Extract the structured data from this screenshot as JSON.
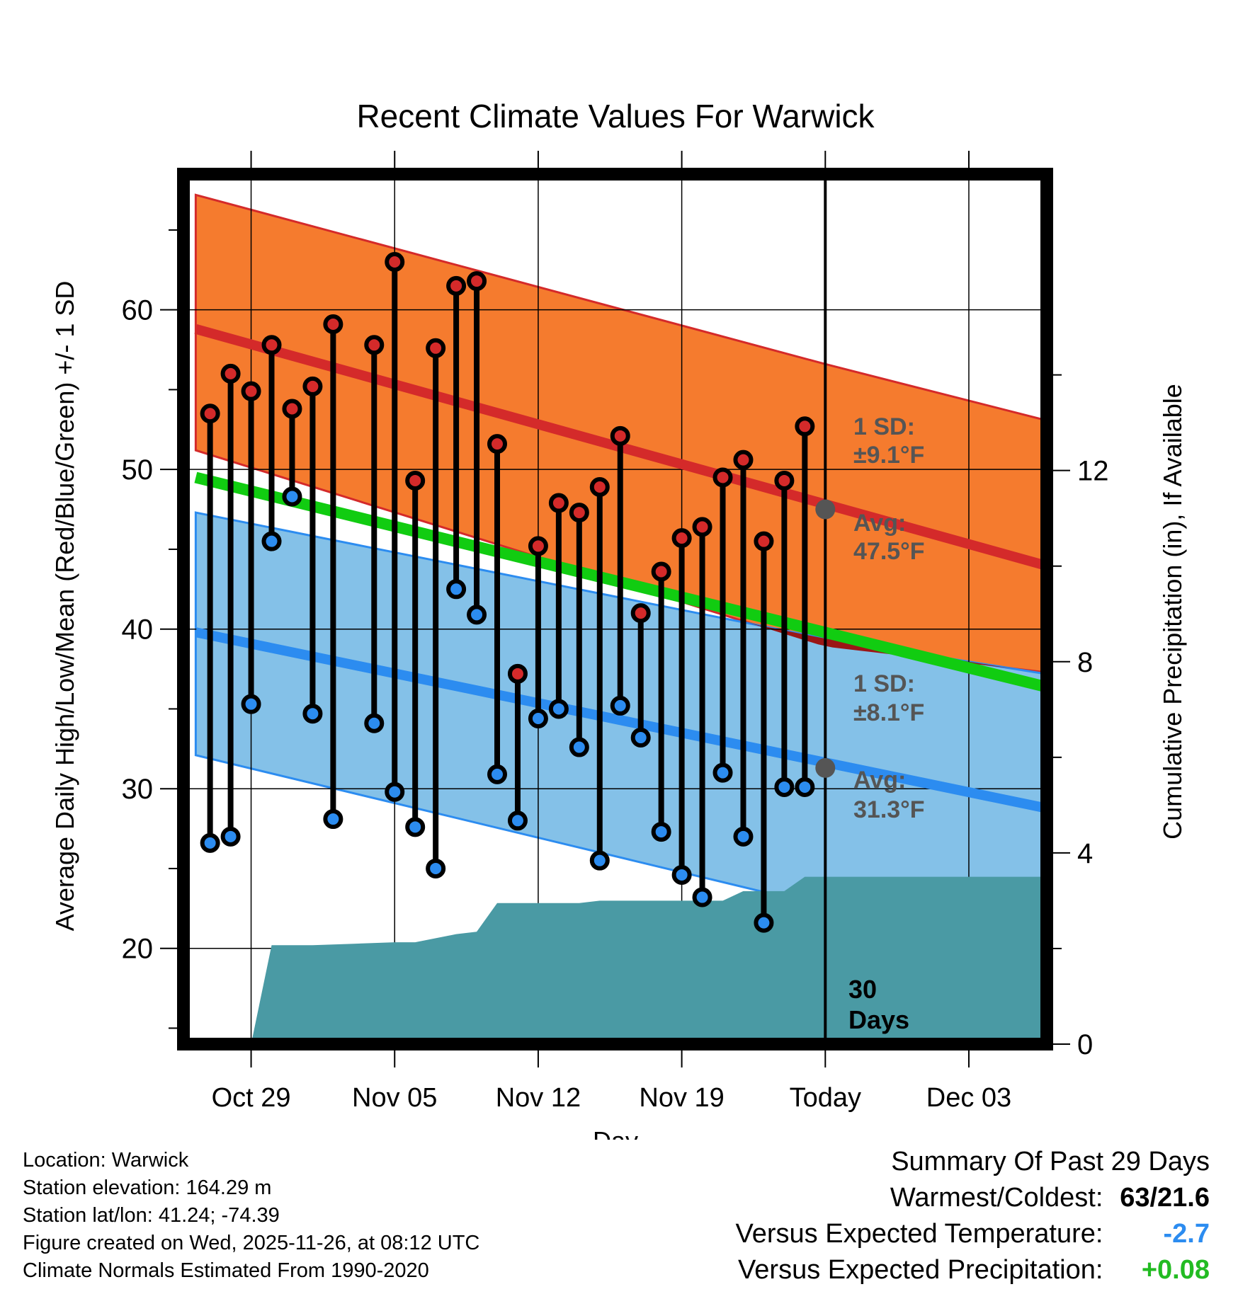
{
  "chart_data": {
    "type": "line",
    "title": "Recent Climate Values For Warwick",
    "xlabel": "Day",
    "ylabel": "Average Daily High/Low/Mean (Red/Blue/Green) +/- 1 SD",
    "y2label": "Cumulative Precipitation (in), If Available",
    "xlim": [
      -3.3,
      38.8
    ],
    "ylim": [
      14,
      68.5
    ],
    "y2lim": [
      0,
      18.2
    ],
    "x_ticks": [
      {
        "x": 0,
        "label": "Oct 29"
      },
      {
        "x": 7,
        "label": "Nov 05"
      },
      {
        "x": 14,
        "label": "Nov 12"
      },
      {
        "x": 21,
        "label": "Nov 19"
      },
      {
        "x": 28,
        "label": "Today"
      },
      {
        "x": 35,
        "label": "Dec 03"
      }
    ],
    "y_ticks": [
      20,
      30,
      40,
      50,
      60
    ],
    "y2_ticks": [
      0,
      4,
      8,
      12
    ],
    "today_x": 28,
    "normals": {
      "x": [
        -2.7,
        28,
        38.7
      ],
      "high_mean": [
        58.8,
        47.5,
        44
      ],
      "high_upper": [
        67.2,
        56.6,
        53.1
      ],
      "high_lower": [
        51.2,
        38.9,
        37.3
      ],
      "low_mean": [
        39.8,
        31.3,
        28.8
      ],
      "low_upper": [
        47.3,
        39.4,
        37.2
      ],
      "low_lower": [
        32.1,
        22.6,
        20.7
      ],
      "mean": [
        49.5,
        39.4,
        36.4
      ]
    },
    "series": [
      {
        "name": "Daily High",
        "color": "#d42a2a",
        "x": [
          -2,
          -1,
          0,
          1,
          2,
          3,
          4,
          6,
          7,
          8,
          9,
          10,
          11,
          12,
          13,
          14,
          15,
          16,
          17,
          18,
          19,
          20,
          21,
          22,
          23,
          24,
          25,
          26,
          27
        ],
        "values": [
          53.5,
          56,
          54.9,
          57.8,
          53.8,
          55.2,
          59.1,
          57.8,
          63,
          49.3,
          57.6,
          61.5,
          61.8,
          51.6,
          37.2,
          45.2,
          47.9,
          47.3,
          48.9,
          52.1,
          41,
          43.6,
          45.7,
          46.4,
          49.5,
          50.6,
          45.5,
          49.3,
          52.7
        ]
      },
      {
        "name": "Daily Low",
        "color": "#2c8cf0",
        "x": [
          -2,
          -1,
          0,
          1,
          2,
          3,
          4,
          6,
          7,
          8,
          9,
          10,
          11,
          12,
          13,
          14,
          15,
          16,
          17,
          18,
          19,
          20,
          21,
          22,
          23,
          24,
          25,
          26,
          27
        ],
        "values": [
          26.6,
          27,
          35.3,
          45.5,
          48.3,
          34.7,
          28.1,
          34.1,
          29.8,
          27.6,
          25,
          42.5,
          40.9,
          30.9,
          28,
          34.4,
          35,
          32.6,
          25.5,
          35.2,
          33.2,
          27.3,
          24.6,
          23.2,
          31,
          27,
          21.6,
          30.1,
          30.1
        ]
      }
    ],
    "precip": {
      "name": "Cumulative Precipitation",
      "color": "#4a9aa4",
      "x": [
        0,
        1,
        3,
        5,
        7,
        8,
        10,
        11,
        12,
        13,
        14,
        15,
        16,
        17,
        18,
        19,
        20,
        21,
        22,
        23,
        24,
        25,
        26,
        27,
        28,
        38.7
      ],
      "values": [
        0,
        2.07,
        2.07,
        2.1,
        2.13,
        2.13,
        2.3,
        2.35,
        2.95,
        2.95,
        2.95,
        2.95,
        2.95,
        3,
        3,
        3,
        3,
        3,
        3,
        3,
        3.2,
        3.2,
        3.2,
        3.5,
        3.5,
        3.5
      ]
    },
    "annotations": {
      "high_sd": {
        "line1": "1 SD:",
        "line2": "±9.1°F"
      },
      "high_avg": {
        "line1": "Avg:",
        "line2": "47.5°F",
        "value": 47.5
      },
      "low_sd": {
        "line1": "1 SD:",
        "line2": "±8.1°F"
      },
      "low_avg": {
        "line1": "Avg:",
        "line2": "31.3°F",
        "value": 31.3
      },
      "days": {
        "line1": "30",
        "line2": "Days"
      }
    }
  },
  "footer": {
    "location": "Location: Warwick",
    "elevation": "Station elevation: 164.29 m",
    "latlon": "Station lat/lon: 41.24; -74.39",
    "created": "Figure created on Wed, 2025-11-26, at 08:12 UTC",
    "normals": "Climate Normals Estimated From 1990-2020"
  },
  "summary": {
    "title": "Summary Of Past 29 Days",
    "warm_cold_label": "Warmest/Coldest:",
    "warm_cold_value": "63/21.6",
    "temp_label": "Versus Expected Temperature:",
    "temp_value": "-2.7",
    "temp_color": "#2c8cf0",
    "precip_label": "Versus Expected Precipitation:",
    "precip_value": "+0.08",
    "precip_color": "#22bb22"
  }
}
